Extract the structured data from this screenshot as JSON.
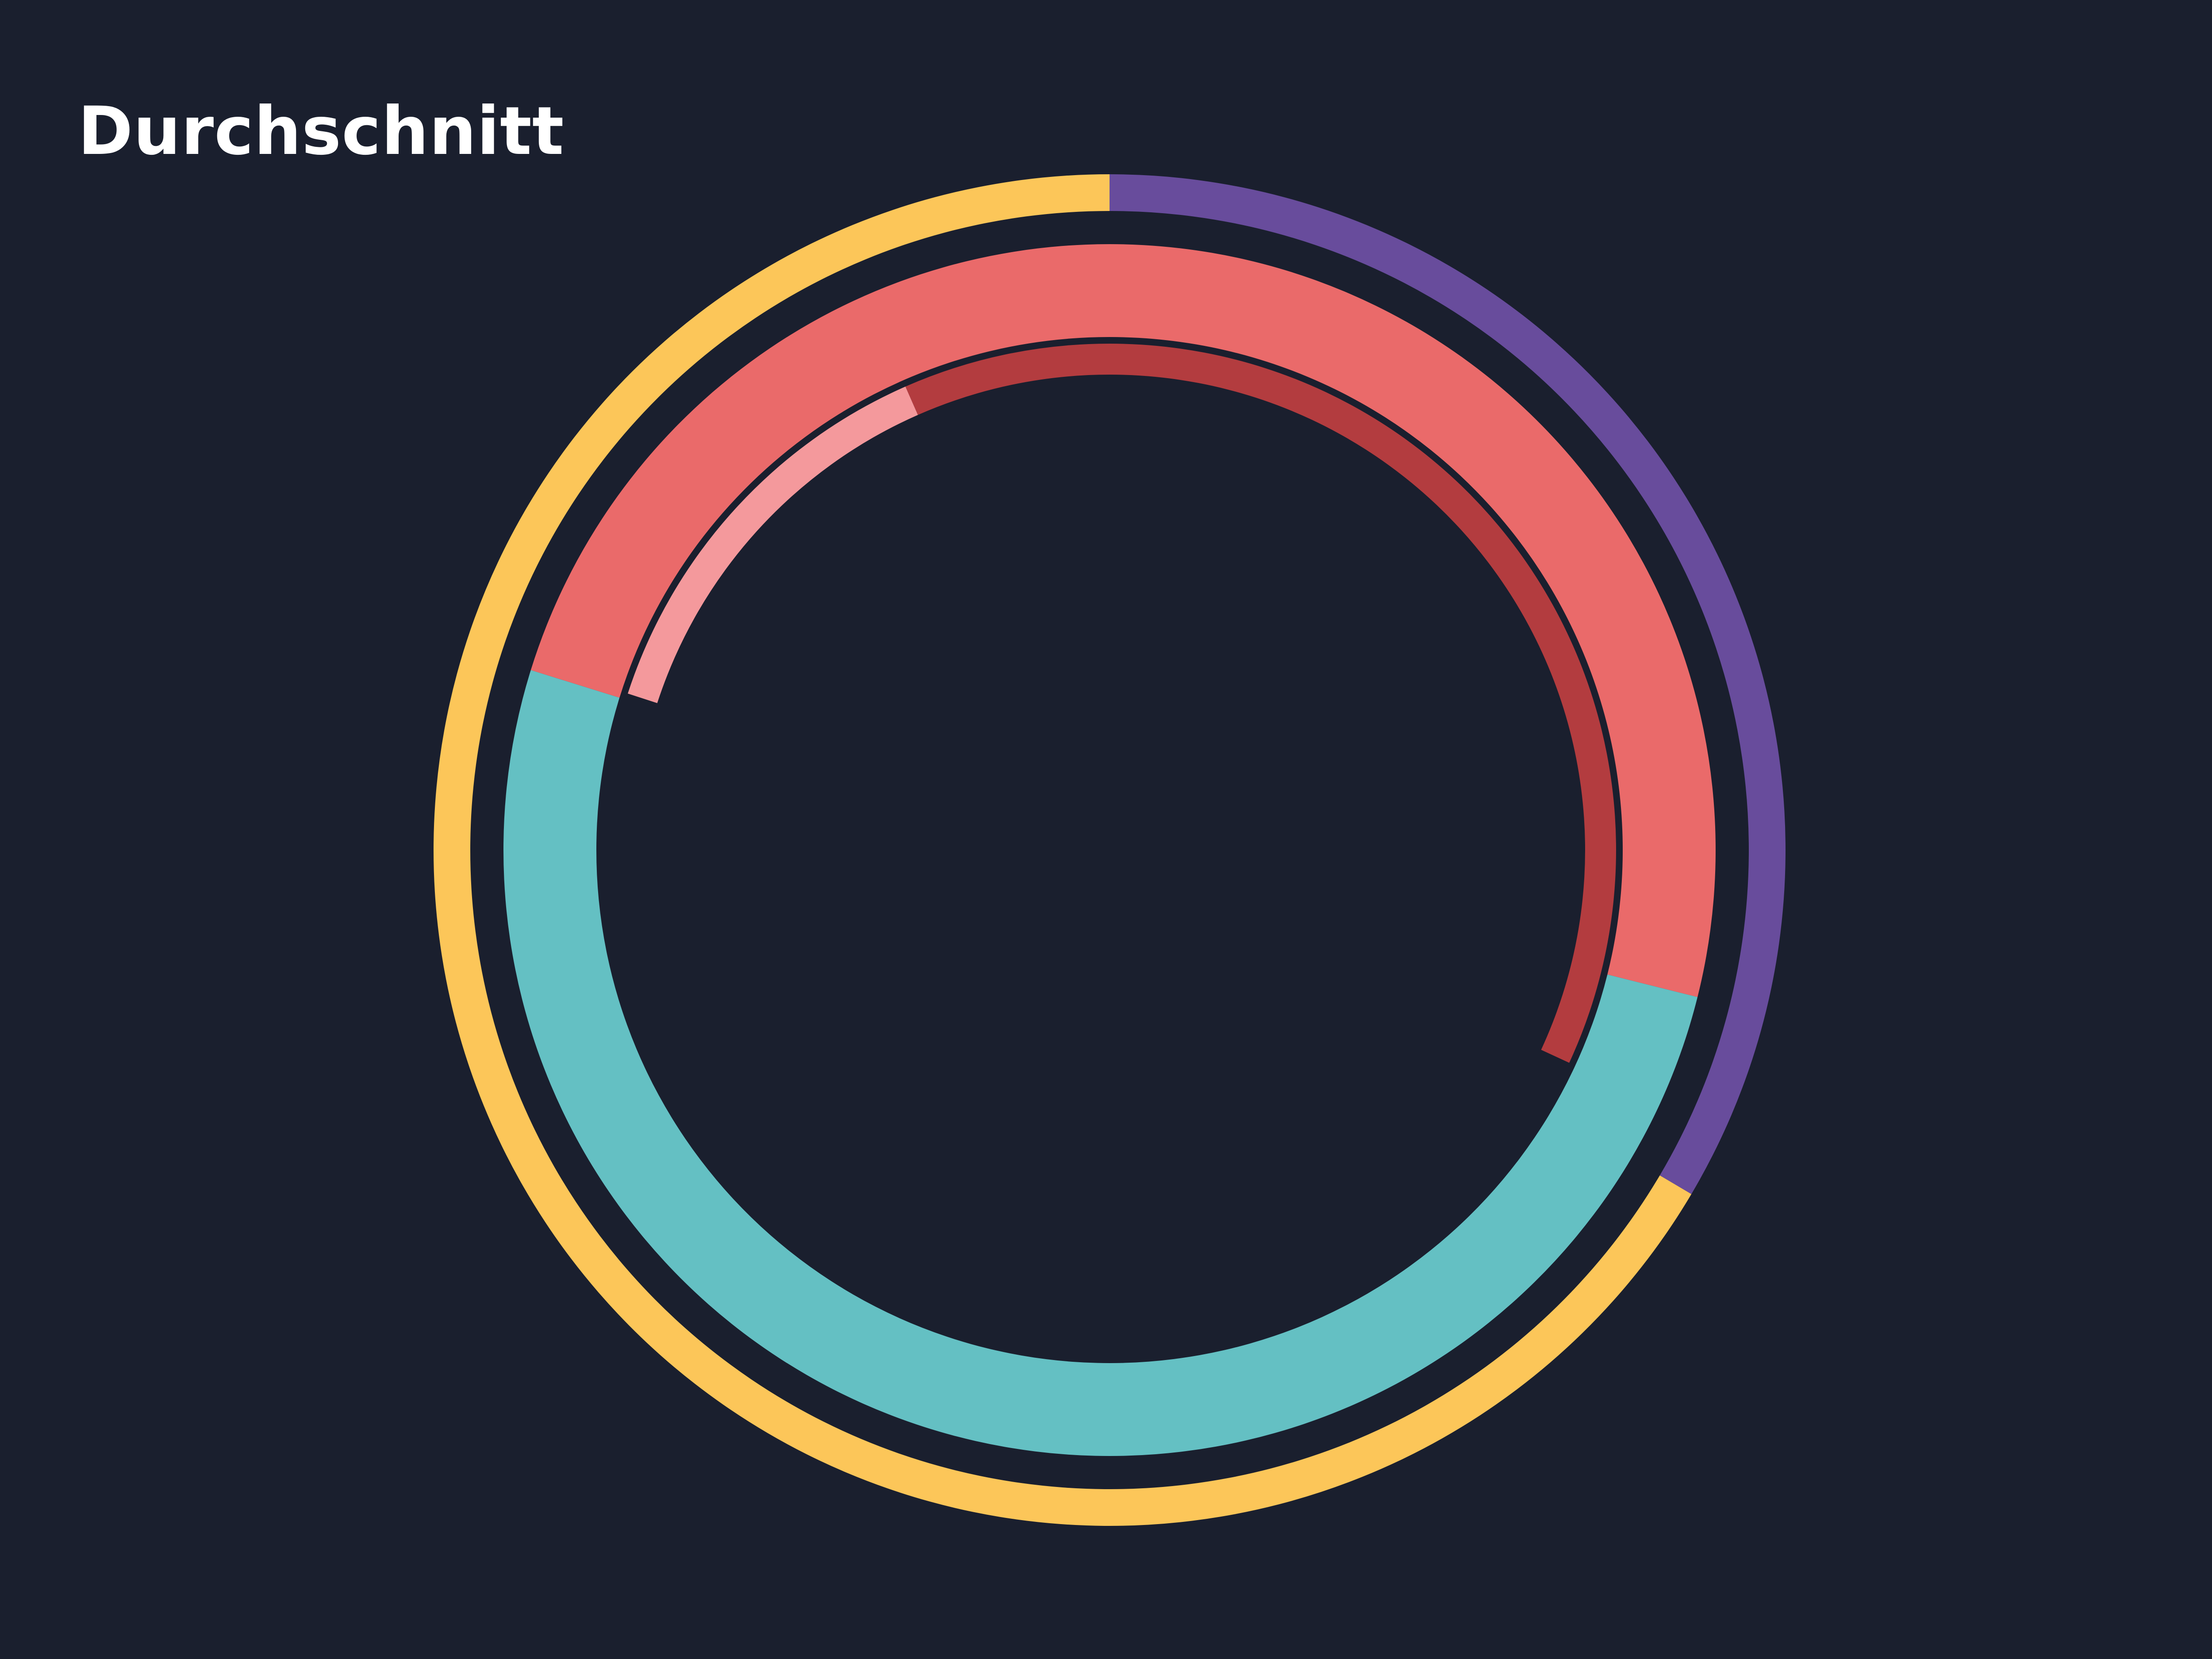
{
  "chart_data": {
    "type": "pie",
    "variant": "nested-sunburst",
    "title": "Durchschnitt",
    "background": "#1a1f2e",
    "rings": [
      {
        "level": 1,
        "slices": [
          {
            "value": 33.5,
            "color": "#684c9c"
          },
          {
            "value": 66.5,
            "color": "#fcc659"
          }
        ]
      },
      {
        "level": 2,
        "slices": [
          {
            "value": 28.9,
            "color": "#ea6a6a"
          },
          {
            "value": 50.9,
            "color": "#64c0c3"
          },
          {
            "value": 20.2,
            "color": "#ea6a6a"
          }
        ]
      },
      {
        "level": 3,
        "slices": [
          {
            "value": 31.9,
            "color": "#b33c3f"
          },
          {
            "value": 48.1,
            "color": null
          },
          {
            "value": 13.4,
            "color": "#f4999c"
          },
          {
            "value": 6.6,
            "color": "#b33c3f"
          }
        ]
      }
    ]
  }
}
